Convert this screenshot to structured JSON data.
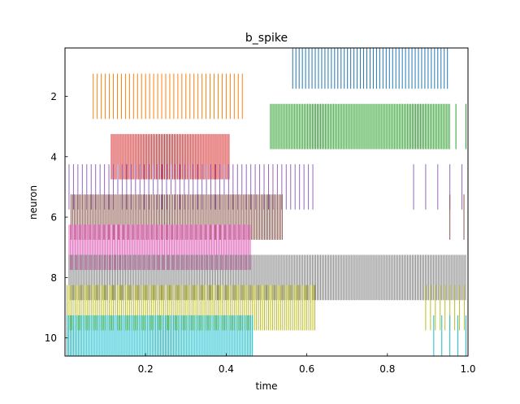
{
  "chart_data": {
    "type": "eventplot",
    "title": "b_spike",
    "xlabel": "time",
    "ylabel": "neuron",
    "xlim": [
      0.0,
      1.0
    ],
    "ylim": [
      10.6,
      0.4
    ],
    "y_inverted": true,
    "x_ticks": [
      0.2,
      0.4,
      0.6,
      0.8,
      1.0
    ],
    "x_tick_labels": [
      "0.2",
      "0.4",
      "0.6",
      "0.8",
      "1.0"
    ],
    "y_ticks": [
      2,
      4,
      6,
      8,
      10
    ],
    "y_tick_labels": [
      "2",
      "4",
      "6",
      "8",
      "10"
    ],
    "line_length": 1.5,
    "grid": false,
    "legend": false,
    "series": [
      {
        "neuron": 1,
        "color": "#1f77b4",
        "segments": [
          {
            "start": 0.565,
            "end": 0.955,
            "interval": 0.008
          }
        ]
      },
      {
        "neuron": 2,
        "color": "#ff7f0e",
        "segments": [
          {
            "start": 0.07,
            "end": 0.445,
            "interval": 0.01
          }
        ]
      },
      {
        "neuron": 3,
        "color": "#2ca02c",
        "segments": [
          {
            "start": 0.51,
            "end": 0.955,
            "interval": 0.004
          },
          {
            "start": 0.97,
            "end": 0.995,
            "interval": 0.025
          }
        ]
      },
      {
        "neuron": 4,
        "color": "#d62728",
        "segments": [
          {
            "start": 0.115,
            "end": 0.41,
            "interval": 0.004
          }
        ]
      },
      {
        "neuron": 5,
        "color": "#9467bd",
        "segments": [
          {
            "start": 0.01,
            "end": 0.62,
            "interval": 0.011
          },
          {
            "start": 0.865,
            "end": 0.995,
            "interval": 0.03
          }
        ]
      },
      {
        "neuron": 6,
        "color": "#8c564b",
        "segments": [
          {
            "start": 0.015,
            "end": 0.54,
            "interval": 0.004
          },
          {
            "start": 0.955,
            "end": 0.99,
            "interval": 0.035
          }
        ]
      },
      {
        "neuron": 7,
        "color": "#e377c2",
        "segments": [
          {
            "start": 0.01,
            "end": 0.46,
            "interval": 0.003
          }
        ]
      },
      {
        "neuron": 8,
        "color": "#7f7f7f",
        "segments": [
          {
            "start": 0.01,
            "end": 0.995,
            "interval": 0.004
          }
        ]
      },
      {
        "neuron": 9,
        "color": "#bcbd22",
        "segments": [
          {
            "start": 0.005,
            "end": 0.62,
            "interval": 0.005
          },
          {
            "start": 0.895,
            "end": 0.995,
            "interval": 0.012
          }
        ]
      },
      {
        "neuron": 10,
        "color": "#17becf",
        "segments": [
          {
            "start": 0.005,
            "end": 0.465,
            "interval": 0.004
          },
          {
            "start": 0.915,
            "end": 0.995,
            "interval": 0.02
          }
        ]
      }
    ]
  }
}
